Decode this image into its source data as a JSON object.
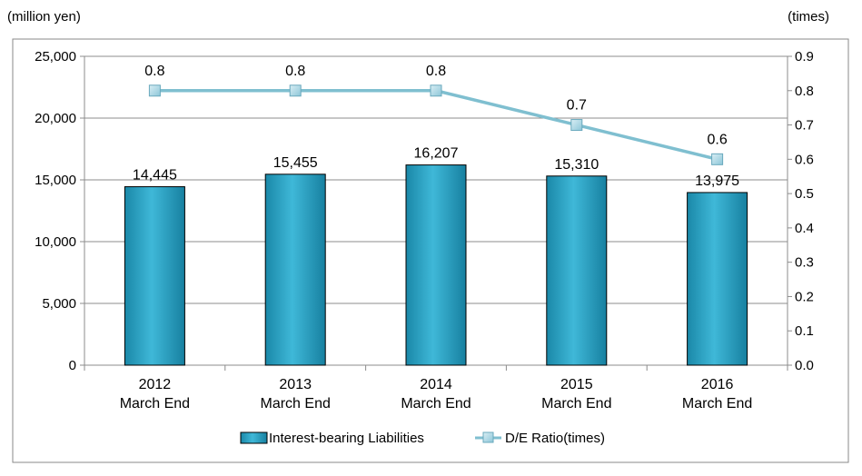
{
  "chart_data": {
    "type": "bar",
    "categories": [
      [
        "2012",
        "March End"
      ],
      [
        "2013",
        "March End"
      ],
      [
        "2014",
        "March End"
      ],
      [
        "2015",
        "March End"
      ],
      [
        "2016",
        "March End"
      ]
    ],
    "left_axis": {
      "unit_label": "(million yen)",
      "ylim": [
        0,
        25000
      ],
      "ticks": [
        0,
        5000,
        10000,
        15000,
        20000,
        25000
      ],
      "tick_labels": [
        "0",
        "5,000",
        "10,000",
        "15,000",
        "20,000",
        "25,000"
      ]
    },
    "right_axis": {
      "unit_label": "(times)",
      "ylim": [
        0,
        0.9
      ],
      "ticks": [
        0,
        0.1,
        0.2,
        0.3,
        0.4,
        0.5,
        0.6,
        0.7,
        0.8,
        0.9
      ],
      "tick_labels": [
        "0.0",
        "0.1",
        "0.2",
        "0.3",
        "0.4",
        "0.5",
        "0.6",
        "0.7",
        "0.8",
        "0.9"
      ]
    },
    "grid": true,
    "legend_position": "bottom",
    "series": [
      {
        "name": "Interest-bearing Liabilities",
        "type": "bar",
        "axis": "left",
        "values": [
          14445,
          15455,
          16207,
          15310,
          13975
        ],
        "labels": [
          "14,445",
          "15,455",
          "16,207",
          "15,310",
          "13,975"
        ],
        "color": "#2aa4c6"
      },
      {
        "name": "D/E Ratio(times)",
        "type": "line",
        "axis": "right",
        "values": [
          0.8,
          0.8,
          0.8,
          0.7,
          0.6
        ],
        "labels": [
          "0.8",
          "0.8",
          "0.8",
          "0.7",
          "0.6"
        ],
        "color": "#7fbfd0"
      }
    ]
  }
}
